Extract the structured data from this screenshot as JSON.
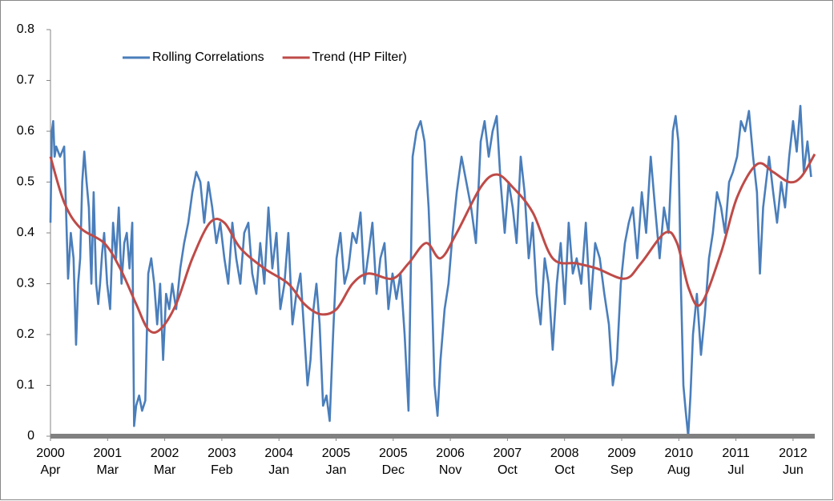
{
  "chart_data": {
    "type": "line",
    "xlim": [
      0,
      3345
    ],
    "ylim": [
      0,
      0.8
    ],
    "yticks": [
      0,
      0.1,
      0.2,
      0.3,
      0.4,
      0.5,
      0.6,
      0.7,
      0.8
    ],
    "xticks": [
      {
        "value": 0,
        "label": [
          "2000",
          "Apr"
        ]
      },
      {
        "value": 250,
        "label": [
          "2001",
          "Mar"
        ]
      },
      {
        "value": 500,
        "label": [
          "2002",
          "Mar"
        ]
      },
      {
        "value": 750,
        "label": [
          "2003",
          "Feb"
        ]
      },
      {
        "value": 1000,
        "label": [
          "2004",
          "Jan"
        ]
      },
      {
        "value": 1250,
        "label": [
          "2005",
          "Jan"
        ]
      },
      {
        "value": 1500,
        "label": [
          "2005",
          "Dec"
        ]
      },
      {
        "value": 1750,
        "label": [
          "2006",
          "Nov"
        ]
      },
      {
        "value": 2000,
        "label": [
          "2007",
          "Oct"
        ]
      },
      {
        "value": 2250,
        "label": [
          "2008",
          "Oct"
        ]
      },
      {
        "value": 2500,
        "label": [
          "2009",
          "Sep"
        ]
      },
      {
        "value": 2750,
        "label": [
          "2010",
          "Aug"
        ]
      },
      {
        "value": 3000,
        "label": [
          "2011",
          "Jul"
        ]
      },
      {
        "value": 3250,
        "label": [
          "2012",
          "Jun"
        ]
      }
    ],
    "grid": false,
    "legend": "top",
    "series": [
      {
        "name": "Rolling Correlations",
        "color": "#4a7ebb",
        "smooth": false,
        "x": [
          0,
          6,
          12,
          18,
          25,
          42,
          60,
          77,
          89,
          101,
          112,
          121,
          130,
          139,
          148,
          158,
          168,
          179,
          189,
          200,
          209,
          217,
          226,
          235,
          248,
          261,
          274,
          287,
          299,
          311,
          323,
          334,
          346,
          358,
          366,
          375,
          388,
          401,
          415,
          428,
          441,
          454,
          467,
          480,
          493,
          506,
          520,
          533,
          550,
          568,
          585,
          603,
          621,
          638,
          656,
          673,
          691,
          708,
          726,
          743,
          761,
          778,
          796,
          813,
          831,
          848,
          866,
          883,
          901,
          918,
          936,
          954,
          971,
          989,
          1006,
          1024,
          1041,
          1059,
          1076,
          1094,
          1111,
          1125,
          1138,
          1151,
          1164,
          1178,
          1193,
          1208,
          1222,
          1237,
          1252,
          1269,
          1287,
          1304,
          1322,
          1339,
          1357,
          1374,
          1392,
          1409,
          1427,
          1444,
          1462,
          1479,
          1497,
          1514,
          1532,
          1550,
          1567,
          1585,
          1602,
          1620,
          1637,
          1655,
          1668,
          1681,
          1694,
          1707,
          1725,
          1742,
          1760,
          1778,
          1799,
          1820,
          1841,
          1862,
          1883,
          1900,
          1918,
          1935,
          1953,
          1970,
          1988,
          2005,
          2023,
          2040,
          2058,
          2075,
          2093,
          2110,
          2128,
          2145,
          2163,
          2180,
          2198,
          2216,
          2233,
          2251,
          2268,
          2286,
          2303,
          2323,
          2343,
          2363,
          2384,
          2404,
          2424,
          2444,
          2461,
          2479,
          2496,
          2514,
          2531,
          2549,
          2568,
          2588,
          2607,
          2627,
          2646,
          2666,
          2685,
          2705,
          2724,
          2736,
          2748,
          2759,
          2770,
          2780,
          2791,
          2801,
          2812,
          2829,
          2847,
          2864,
          2882,
          2899,
          2917,
          2935,
          2952,
          2970,
          2987,
          3005,
          3022,
          3040,
          3057,
          3075,
          3092,
          3105,
          3119,
          3132,
          3145,
          3163,
          3180,
          3198,
          3215,
          3233,
          3250,
          3266,
          3282,
          3297,
          3313,
          3329
        ],
        "values": [
          0.42,
          0.6,
          0.62,
          0.55,
          0.57,
          0.55,
          0.57,
          0.31,
          0.4,
          0.35,
          0.18,
          0.3,
          0.35,
          0.5,
          0.56,
          0.5,
          0.45,
          0.3,
          0.48,
          0.3,
          0.26,
          0.3,
          0.36,
          0.4,
          0.3,
          0.25,
          0.42,
          0.35,
          0.45,
          0.3,
          0.38,
          0.4,
          0.33,
          0.42,
          0.02,
          0.06,
          0.08,
          0.05,
          0.07,
          0.32,
          0.35,
          0.3,
          0.22,
          0.3,
          0.15,
          0.28,
          0.25,
          0.3,
          0.25,
          0.33,
          0.38,
          0.42,
          0.48,
          0.52,
          0.5,
          0.42,
          0.5,
          0.45,
          0.38,
          0.42,
          0.35,
          0.3,
          0.42,
          0.35,
          0.3,
          0.4,
          0.42,
          0.32,
          0.28,
          0.38,
          0.3,
          0.45,
          0.33,
          0.4,
          0.25,
          0.3,
          0.4,
          0.22,
          0.28,
          0.32,
          0.2,
          0.1,
          0.15,
          0.25,
          0.3,
          0.22,
          0.06,
          0.08,
          0.03,
          0.2,
          0.35,
          0.4,
          0.3,
          0.33,
          0.4,
          0.38,
          0.44,
          0.3,
          0.36,
          0.42,
          0.28,
          0.35,
          0.38,
          0.25,
          0.32,
          0.27,
          0.32,
          0.2,
          0.05,
          0.55,
          0.6,
          0.62,
          0.58,
          0.45,
          0.3,
          0.1,
          0.04,
          0.15,
          0.25,
          0.3,
          0.4,
          0.48,
          0.55,
          0.5,
          0.45,
          0.38,
          0.58,
          0.62,
          0.55,
          0.6,
          0.63,
          0.5,
          0.4,
          0.5,
          0.45,
          0.38,
          0.55,
          0.48,
          0.35,
          0.42,
          0.28,
          0.22,
          0.35,
          0.3,
          0.17,
          0.3,
          0.38,
          0.26,
          0.42,
          0.32,
          0.35,
          0.3,
          0.42,
          0.25,
          0.38,
          0.35,
          0.28,
          0.22,
          0.1,
          0.15,
          0.3,
          0.38,
          0.42,
          0.45,
          0.35,
          0.48,
          0.4,
          0.55,
          0.45,
          0.35,
          0.45,
          0.4,
          0.6,
          0.63,
          0.58,
          0.3,
          0.1,
          0.05,
          0.0,
          0.08,
          0.2,
          0.28,
          0.16,
          0.24,
          0.35,
          0.4,
          0.48,
          0.45,
          0.4,
          0.5,
          0.52,
          0.55,
          0.62,
          0.6,
          0.64,
          0.55,
          0.48,
          0.32,
          0.45,
          0.5,
          0.55,
          0.48,
          0.42,
          0.5,
          0.45,
          0.55,
          0.62,
          0.56,
          0.65,
          0.52,
          0.58,
          0.51
        ]
      },
      {
        "name": "Trend (HP Filter)",
        "color": "#be4b48",
        "smooth": true,
        "x": [
          0,
          60,
          130,
          235,
          305,
          375,
          428,
          480,
          550,
          621,
          698,
          761,
          831,
          936,
          1041,
          1111,
          1182,
          1252,
          1322,
          1392,
          1497,
          1567,
          1644,
          1707,
          1778,
          1883,
          1953,
          2023,
          2111,
          2198,
          2303,
          2391,
          2514,
          2584,
          2689,
          2742,
          2794,
          2847,
          2934,
          3005,
          3092,
          3162,
          3233,
          3285,
          3345
        ],
        "values": [
          0.55,
          0.46,
          0.41,
          0.38,
          0.33,
          0.26,
          0.21,
          0.21,
          0.26,
          0.35,
          0.42,
          0.42,
          0.37,
          0.33,
          0.3,
          0.26,
          0.24,
          0.25,
          0.3,
          0.32,
          0.31,
          0.34,
          0.38,
          0.35,
          0.4,
          0.49,
          0.515,
          0.49,
          0.44,
          0.35,
          0.34,
          0.33,
          0.31,
          0.34,
          0.4,
          0.38,
          0.29,
          0.26,
          0.36,
          0.47,
          0.535,
          0.52,
          0.5,
          0.51,
          0.555
        ]
      }
    ]
  }
}
